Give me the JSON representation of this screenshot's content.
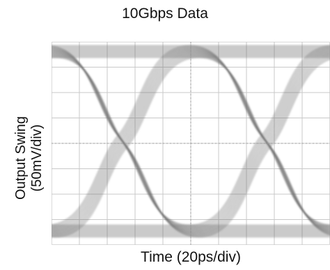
{
  "chart_data": {
    "type": "eye diagram",
    "title": "10Gbps Data",
    "xlabel": "Time (20ps/div)",
    "ylabel_line1": "Output Swing",
    "ylabel_line2": "(50mV/div)",
    "grid": true,
    "x_divisions": 10,
    "y_divisions": 8,
    "colors": {
      "trace": "#6e6e6e",
      "grid": "#c8c8c8",
      "frame": "#d9d9d9",
      "crosshair": "#9a9a9a"
    }
  }
}
